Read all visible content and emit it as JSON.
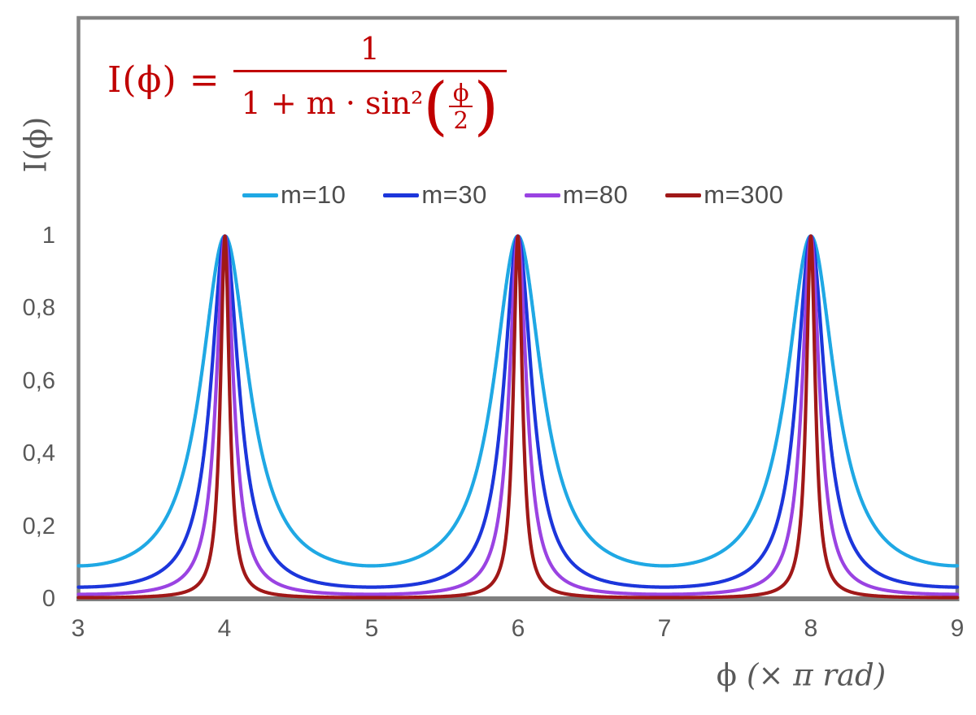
{
  "chart_data": {
    "type": "line",
    "title": "",
    "function": "I(x) = 1 / (1 + m * sin^2(pi*x/2)), x in units of pi rad",
    "formula_text": "I(ϕ) = 1 / (1 + m · sin²(ϕ/2))",
    "xlabel": "ϕ (× π rad)",
    "ylabel": "I(ϕ)",
    "x_unit": "π rad",
    "xlim": [
      3,
      9
    ],
    "ylim": [
      0,
      1.6
    ],
    "x_ticks": [
      3,
      4,
      5,
      6,
      7,
      8,
      9
    ],
    "y_ticks": [
      0,
      0.2,
      0.4,
      0.6,
      0.8,
      1
    ],
    "y_tick_labels": [
      "0",
      "0,2",
      "0,4",
      "0,6",
      "0,8",
      "1"
    ],
    "grid": false,
    "legend_position": "top-center",
    "peaks_at_x": [
      4,
      6,
      8
    ],
    "peak_value": 1,
    "series": [
      {
        "name": "m=10",
        "m": 10,
        "color": "#1FA8E4",
        "min_value": 0.0909
      },
      {
        "name": "m=30",
        "m": 30,
        "color": "#1C36DB",
        "min_value": 0.0323
      },
      {
        "name": "m=80",
        "m": 80,
        "color": "#9A43E2",
        "min_value": 0.0123
      },
      {
        "name": "m=300",
        "m": 300,
        "color": "#A01818",
        "min_value": 0.0033
      }
    ]
  },
  "formula": {
    "color": "#C00000",
    "lhs": "I(ϕ) =",
    "numerator": "1",
    "den_prefix": "1 + m · sin²",
    "paren_open": "(",
    "inner_numerator": "ϕ",
    "inner_denominator": "2",
    "paren_close": ")"
  },
  "legend": {
    "items": [
      {
        "label": "m=10",
        "color": "#1FA8E4"
      },
      {
        "label": "m=30",
        "color": "#1C36DB"
      },
      {
        "label": "m=80",
        "color": "#9A43E2"
      },
      {
        "label": "m=300",
        "color": "#A01818"
      }
    ]
  },
  "axes": {
    "x_tick_labels": [
      "3",
      "4",
      "5",
      "6",
      "7",
      "8",
      "9"
    ],
    "y_tick_labels": [
      "0",
      "0,2",
      "0,4",
      "0,6",
      "0,8",
      "1"
    ],
    "y_title": "I(ϕ)",
    "x_title_symbol": "ϕ",
    "x_title_units": "(× π rad)"
  }
}
